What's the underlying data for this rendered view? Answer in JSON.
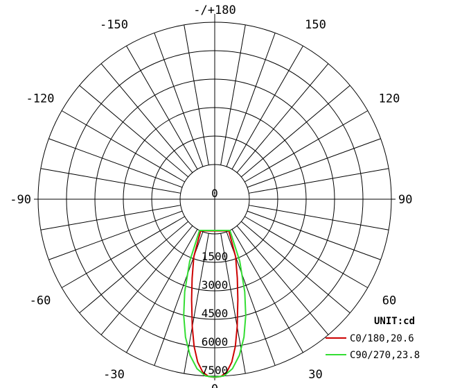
{
  "chart_data": {
    "type": "polar",
    "title": "",
    "unit_label": "UNIT:cd",
    "r_max": 7500,
    "radial_ticks": [
      {
        "value": 0,
        "label": "0"
      },
      {
        "value": 1500,
        "label": "1500"
      },
      {
        "value": 3000,
        "label": "3000"
      },
      {
        "value": 4500,
        "label": "4500"
      },
      {
        "value": 6000,
        "label": "6000"
      },
      {
        "value": 7500,
        "label": "7500"
      }
    ],
    "angle_labels": [
      {
        "angle": 0,
        "text": "0"
      },
      {
        "angle": 30,
        "text": "30"
      },
      {
        "angle": 60,
        "text": "60"
      },
      {
        "angle": 90,
        "text": "90"
      },
      {
        "angle": 120,
        "text": "120"
      },
      {
        "angle": 150,
        "text": "150"
      },
      {
        "angle": 180,
        "text": "-/+180"
      },
      {
        "angle": -150,
        "text": "-150"
      },
      {
        "angle": -120,
        "text": "-120"
      },
      {
        "angle": -90,
        "text": "-90"
      },
      {
        "angle": -60,
        "text": "-60"
      },
      {
        "angle": -30,
        "text": "-30"
      }
    ],
    "grid": true,
    "legend_position": "bottom-right",
    "series": [
      {
        "name": "C0/180,20.6",
        "color": "#cc0000",
        "points": [
          [
            -24,
            0
          ],
          [
            -20,
            1400
          ],
          [
            -16,
            2500
          ],
          [
            -13,
            3600
          ],
          [
            -10,
            5000
          ],
          [
            -8,
            6000
          ],
          [
            -6,
            6800
          ],
          [
            -4,
            7300
          ],
          [
            -2,
            7520
          ],
          [
            0,
            7560
          ],
          [
            2,
            7520
          ],
          [
            4,
            7300
          ],
          [
            6,
            6800
          ],
          [
            8,
            6000
          ],
          [
            10,
            5000
          ],
          [
            13,
            3600
          ],
          [
            16,
            2500
          ],
          [
            20,
            1400
          ],
          [
            24,
            0
          ]
        ]
      },
      {
        "name": "C90/270,23.8",
        "color": "#33dd33",
        "points": [
          [
            -26,
            0
          ],
          [
            -22,
            1700
          ],
          [
            -18,
            3300
          ],
          [
            -15,
            4500
          ],
          [
            -12,
            5600
          ],
          [
            -9,
            6500
          ],
          [
            -6,
            7150
          ],
          [
            -3,
            7500
          ],
          [
            0,
            7550
          ],
          [
            3,
            7500
          ],
          [
            6,
            7150
          ],
          [
            9,
            6500
          ],
          [
            12,
            5600
          ],
          [
            15,
            4500
          ],
          [
            18,
            3300
          ],
          [
            22,
            1700
          ],
          [
            26,
            0
          ]
        ]
      }
    ]
  }
}
